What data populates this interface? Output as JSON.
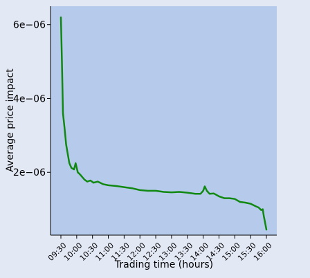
{
  "chart_data": {
    "type": "line",
    "title": "",
    "xlabel": "Trading time (hours)",
    "ylabel": "Average price impact",
    "x_ticks": [
      "09:30",
      "10:00",
      "10:30",
      "11:00",
      "11:30",
      "12:00",
      "12:30",
      "13:00",
      "13:30",
      "14:00",
      "14:30",
      "15:00",
      "15:30",
      "16:00"
    ],
    "y_ticks": [
      {
        "value": 2e-06,
        "label": "2e−06"
      },
      {
        "value": 4e-06,
        "label": "4e−06"
      },
      {
        "value": 6e-06,
        "label": "6e−06"
      }
    ],
    "ylim": [
      3e-07,
      6.5e-06
    ],
    "grid": false,
    "series": [
      {
        "color": "#118811",
        "points": [
          [
            "09:30",
            6.2e-06
          ],
          [
            "09:32",
            5e-06
          ],
          [
            "09:34",
            3.6e-06
          ],
          [
            "09:37",
            3.2e-06
          ],
          [
            "09:40",
            2.75e-06
          ],
          [
            "09:43",
            2.5e-06
          ],
          [
            "09:46",
            2.25e-06
          ],
          [
            "09:50",
            2.12e-06
          ],
          [
            "09:55",
            2.08e-06
          ],
          [
            "09:58",
            2.25e-06
          ],
          [
            "10:02",
            2e-06
          ],
          [
            "10:06",
            1.95e-06
          ],
          [
            "10:10",
            1.88e-06
          ],
          [
            "10:15",
            1.8e-06
          ],
          [
            "10:20",
            1.75e-06
          ],
          [
            "10:26",
            1.78e-06
          ],
          [
            "10:32",
            1.72e-06
          ],
          [
            "10:40",
            1.75e-06
          ],
          [
            "10:50",
            1.68e-06
          ],
          [
            "11:00",
            1.65e-06
          ],
          [
            "11:15",
            1.63e-06
          ],
          [
            "11:30",
            1.6e-06
          ],
          [
            "11:45",
            1.57e-06
          ],
          [
            "12:00",
            1.52e-06
          ],
          [
            "12:15",
            1.5e-06
          ],
          [
            "12:30",
            1.5e-06
          ],
          [
            "12:45",
            1.47e-06
          ],
          [
            "13:00",
            1.46e-06
          ],
          [
            "13:15",
            1.47e-06
          ],
          [
            "13:30",
            1.45e-06
          ],
          [
            "13:45",
            1.42e-06
          ],
          [
            "13:55",
            1.42e-06
          ],
          [
            "14:00",
            1.5e-06
          ],
          [
            "14:03",
            1.62e-06
          ],
          [
            "14:07",
            1.5e-06
          ],
          [
            "14:12",
            1.42e-06
          ],
          [
            "14:20",
            1.43e-06
          ],
          [
            "14:30",
            1.35e-06
          ],
          [
            "14:40",
            1.3e-06
          ],
          [
            "14:50",
            1.3e-06
          ],
          [
            "15:00",
            1.28e-06
          ],
          [
            "15:10",
            1.2e-06
          ],
          [
            "15:20",
            1.18e-06
          ],
          [
            "15:30",
            1.15e-06
          ],
          [
            "15:40",
            1.08e-06
          ],
          [
            "15:45",
            1.05e-06
          ],
          [
            "15:50",
            9.8e-07
          ],
          [
            "15:53",
            1e-06
          ],
          [
            "15:55",
            8.2e-07
          ],
          [
            "15:58",
            6e-07
          ],
          [
            "16:00",
            4.5e-07
          ]
        ]
      }
    ]
  }
}
